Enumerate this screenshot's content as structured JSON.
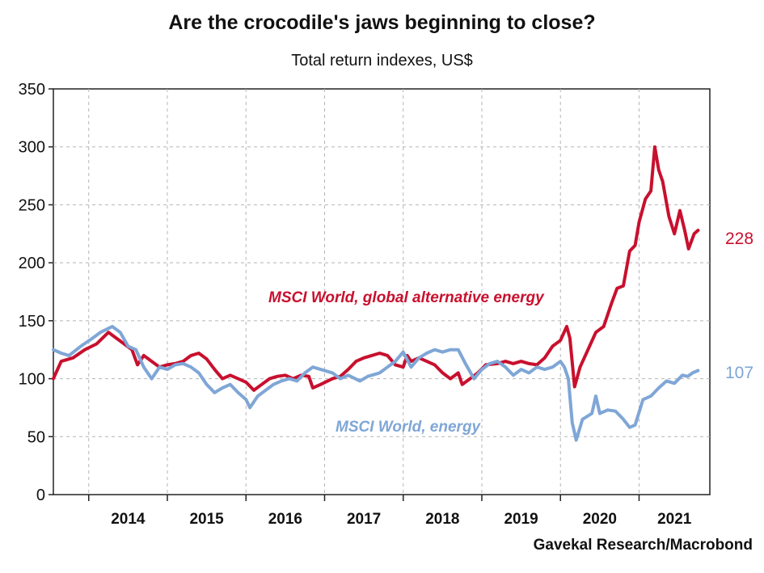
{
  "chart_data": {
    "type": "line",
    "title": "Are the crocodile's jaws beginning to close?",
    "subtitle": "Total return indexes, US$",
    "source": "Gavekal Research/Macrobond",
    "xlabel": "",
    "ylabel": "",
    "ylim": [
      0,
      350
    ],
    "yticks": [
      0,
      50,
      100,
      150,
      200,
      250,
      300,
      350
    ],
    "xlim": [
      2013.55,
      2021.9
    ],
    "xticks": [
      "2014",
      "2015",
      "2016",
      "2017",
      "2018",
      "2019",
      "2020",
      "2021"
    ],
    "grid": true,
    "legend": "inline labels",
    "series": [
      {
        "name": "MSCI World, global alternative energy",
        "color": "#c8102e",
        "end_label": "228",
        "points": [
          [
            2013.55,
            100
          ],
          [
            2013.65,
            115
          ],
          [
            2013.8,
            118
          ],
          [
            2013.95,
            125
          ],
          [
            2014.1,
            130
          ],
          [
            2014.25,
            140
          ],
          [
            2014.35,
            135
          ],
          [
            2014.45,
            130
          ],
          [
            2014.55,
            125
          ],
          [
            2014.62,
            112
          ],
          [
            2014.7,
            120
          ],
          [
            2014.8,
            115
          ],
          [
            2014.9,
            110
          ],
          [
            2015.0,
            112
          ],
          [
            2015.1,
            113
          ],
          [
            2015.2,
            115
          ],
          [
            2015.3,
            120
          ],
          [
            2015.4,
            122
          ],
          [
            2015.5,
            117
          ],
          [
            2015.6,
            108
          ],
          [
            2015.7,
            100
          ],
          [
            2015.8,
            103
          ],
          [
            2015.9,
            100
          ],
          [
            2016.0,
            97
          ],
          [
            2016.1,
            90
          ],
          [
            2016.2,
            95
          ],
          [
            2016.3,
            100
          ],
          [
            2016.4,
            102
          ],
          [
            2016.5,
            103
          ],
          [
            2016.6,
            100
          ],
          [
            2016.7,
            103
          ],
          [
            2016.8,
            102
          ],
          [
            2016.85,
            92
          ],
          [
            2016.95,
            95
          ],
          [
            2017.1,
            100
          ],
          [
            2017.2,
            102
          ],
          [
            2017.3,
            108
          ],
          [
            2017.4,
            115
          ],
          [
            2017.5,
            118
          ],
          [
            2017.6,
            120
          ],
          [
            2017.7,
            122
          ],
          [
            2017.8,
            120
          ],
          [
            2017.9,
            112
          ],
          [
            2018.0,
            110
          ],
          [
            2018.05,
            120
          ],
          [
            2018.1,
            115
          ],
          [
            2018.2,
            118
          ],
          [
            2018.3,
            115
          ],
          [
            2018.4,
            112
          ],
          [
            2018.5,
            105
          ],
          [
            2018.6,
            100
          ],
          [
            2018.7,
            105
          ],
          [
            2018.75,
            95
          ],
          [
            2018.85,
            100
          ],
          [
            2018.95,
            105
          ],
          [
            2019.05,
            112
          ],
          [
            2019.2,
            113
          ],
          [
            2019.3,
            115
          ],
          [
            2019.4,
            113
          ],
          [
            2019.5,
            115
          ],
          [
            2019.6,
            113
          ],
          [
            2019.7,
            112
          ],
          [
            2019.8,
            118
          ],
          [
            2019.9,
            128
          ],
          [
            2020.0,
            133
          ],
          [
            2020.08,
            145
          ],
          [
            2020.12,
            135
          ],
          [
            2020.18,
            93
          ],
          [
            2020.25,
            110
          ],
          [
            2020.35,
            125
          ],
          [
            2020.45,
            140
          ],
          [
            2020.55,
            145
          ],
          [
            2020.65,
            165
          ],
          [
            2020.72,
            178
          ],
          [
            2020.8,
            180
          ],
          [
            2020.88,
            210
          ],
          [
            2020.95,
            215
          ],
          [
            2021.0,
            235
          ],
          [
            2021.08,
            255
          ],
          [
            2021.15,
            262
          ],
          [
            2021.2,
            300
          ],
          [
            2021.25,
            280
          ],
          [
            2021.3,
            270
          ],
          [
            2021.38,
            240
          ],
          [
            2021.45,
            225
          ],
          [
            2021.52,
            245
          ],
          [
            2021.58,
            228
          ],
          [
            2021.63,
            212
          ],
          [
            2021.7,
            225
          ],
          [
            2021.75,
            228
          ]
        ]
      },
      {
        "name": "MSCI World, energy",
        "color": "#7fa6d6",
        "end_label": "107",
        "points": [
          [
            2013.55,
            125
          ],
          [
            2013.65,
            122
          ],
          [
            2013.75,
            120
          ],
          [
            2013.9,
            128
          ],
          [
            2014.05,
            135
          ],
          [
            2014.15,
            140
          ],
          [
            2014.3,
            145
          ],
          [
            2014.4,
            140
          ],
          [
            2014.5,
            128
          ],
          [
            2014.6,
            125
          ],
          [
            2014.7,
            110
          ],
          [
            2014.8,
            100
          ],
          [
            2014.9,
            110
          ],
          [
            2015.0,
            108
          ],
          [
            2015.1,
            112
          ],
          [
            2015.2,
            113
          ],
          [
            2015.3,
            110
          ],
          [
            2015.4,
            105
          ],
          [
            2015.5,
            95
          ],
          [
            2015.6,
            88
          ],
          [
            2015.7,
            92
          ],
          [
            2015.8,
            95
          ],
          [
            2015.9,
            88
          ],
          [
            2016.0,
            82
          ],
          [
            2016.05,
            75
          ],
          [
            2016.15,
            85
          ],
          [
            2016.25,
            90
          ],
          [
            2016.35,
            95
          ],
          [
            2016.45,
            98
          ],
          [
            2016.55,
            100
          ],
          [
            2016.65,
            98
          ],
          [
            2016.75,
            105
          ],
          [
            2016.85,
            110
          ],
          [
            2016.95,
            108
          ],
          [
            2017.1,
            105
          ],
          [
            2017.2,
            100
          ],
          [
            2017.3,
            103
          ],
          [
            2017.45,
            98
          ],
          [
            2017.55,
            102
          ],
          [
            2017.7,
            105
          ],
          [
            2017.8,
            110
          ],
          [
            2017.9,
            115
          ],
          [
            2018.0,
            123
          ],
          [
            2018.1,
            110
          ],
          [
            2018.2,
            118
          ],
          [
            2018.3,
            122
          ],
          [
            2018.4,
            125
          ],
          [
            2018.5,
            123
          ],
          [
            2018.6,
            125
          ],
          [
            2018.7,
            125
          ],
          [
            2018.8,
            112
          ],
          [
            2018.9,
            100
          ],
          [
            2019.0,
            108
          ],
          [
            2019.1,
            113
          ],
          [
            2019.2,
            115
          ],
          [
            2019.3,
            110
          ],
          [
            2019.4,
            103
          ],
          [
            2019.5,
            108
          ],
          [
            2019.6,
            105
          ],
          [
            2019.7,
            110
          ],
          [
            2019.8,
            108
          ],
          [
            2019.9,
            110
          ],
          [
            2020.0,
            115
          ],
          [
            2020.05,
            110
          ],
          [
            2020.1,
            100
          ],
          [
            2020.15,
            62
          ],
          [
            2020.2,
            47
          ],
          [
            2020.28,
            65
          ],
          [
            2020.4,
            70
          ],
          [
            2020.45,
            85
          ],
          [
            2020.5,
            70
          ],
          [
            2020.6,
            73
          ],
          [
            2020.7,
            72
          ],
          [
            2020.8,
            65
          ],
          [
            2020.88,
            58
          ],
          [
            2020.95,
            60
          ],
          [
            2021.05,
            82
          ],
          [
            2021.15,
            85
          ],
          [
            2021.25,
            92
          ],
          [
            2021.35,
            98
          ],
          [
            2021.45,
            96
          ],
          [
            2021.55,
            103
          ],
          [
            2021.62,
            102
          ],
          [
            2021.68,
            105
          ],
          [
            2021.75,
            107
          ]
        ]
      }
    ]
  }
}
